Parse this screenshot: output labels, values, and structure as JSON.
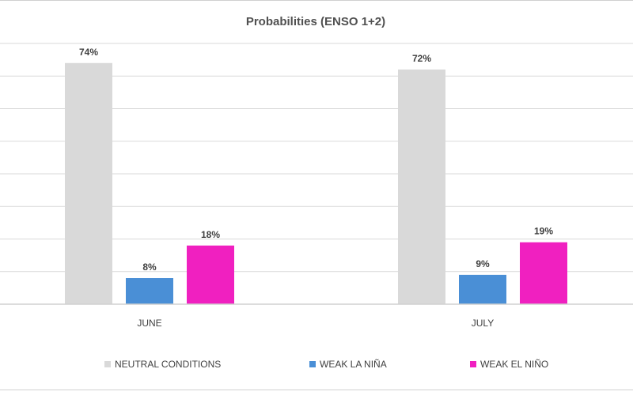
{
  "chart_data": {
    "type": "bar",
    "title": "Probabilities (ENSO 1+2)",
    "categories": [
      "JUNE",
      "JULY"
    ],
    "series": [
      {
        "name": "NEUTRAL CONDITIONS",
        "values": [
          74,
          72
        ],
        "labels": [
          "74%",
          "72%"
        ],
        "color": "#d9d9d9"
      },
      {
        "name": "WEAK LA NIÑA",
        "values": [
          8,
          9
        ],
        "labels": [
          "8%",
          "9%"
        ],
        "color": "#4a8fd6"
      },
      {
        "name": "WEAK EL NIÑO",
        "values": [
          18,
          19
        ],
        "labels": [
          "18%",
          "19%"
        ],
        "color": "#f020c0"
      }
    ],
    "ylim": [
      0,
      80
    ],
    "grid": true,
    "legend_position": "bottom"
  }
}
